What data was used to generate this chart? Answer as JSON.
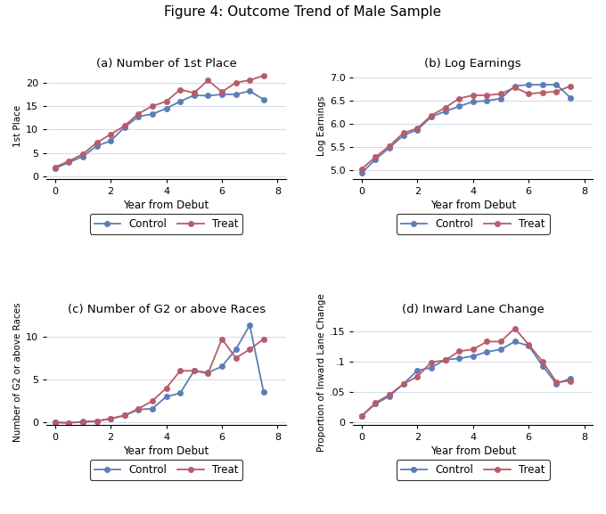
{
  "title": "Figure 4: Outcome Trend of Male Sample",
  "x": [
    0,
    0.5,
    1,
    1.5,
    2,
    2.5,
    3,
    3.5,
    4,
    4.5,
    5,
    5.5,
    6,
    6.5,
    7,
    7.5
  ],
  "panel_a": {
    "title": "(a) Number of 1st Place",
    "ylabel": "1st Place",
    "xlabel": "Year from Debut",
    "control": [
      1.8,
      3.0,
      4.3,
      6.5,
      7.6,
      10.5,
      12.8,
      13.3,
      14.5,
      16.0,
      17.3,
      17.2,
      17.5,
      17.5,
      18.2,
      16.4
    ],
    "treat": [
      2.0,
      3.3,
      4.8,
      7.2,
      9.0,
      10.8,
      13.4,
      15.0,
      16.0,
      18.5,
      17.8,
      20.5,
      18.0,
      20.0,
      20.5,
      21.5
    ],
    "ylim": [
      -0.5,
      22
    ],
    "yticks": [
      0,
      5,
      10,
      15,
      20
    ]
  },
  "panel_b": {
    "title": "(b) Log Earnings",
    "ylabel": "Log Earnings",
    "xlabel": "Year from Debut",
    "control": [
      4.93,
      5.23,
      5.48,
      5.75,
      5.87,
      6.15,
      6.27,
      6.38,
      6.48,
      6.5,
      6.55,
      6.82,
      6.85,
      6.85,
      6.85,
      6.57
    ],
    "treat": [
      5.02,
      5.28,
      5.52,
      5.8,
      5.9,
      6.18,
      6.35,
      6.55,
      6.62,
      6.62,
      6.65,
      6.79,
      6.65,
      6.68,
      6.7,
      6.82
    ],
    "ylim": [
      4.8,
      7.1
    ],
    "yticks": [
      5.0,
      5.5,
      6.0,
      6.5,
      7.0
    ]
  },
  "panel_c": {
    "title": "(c) Number of G2 or above Races",
    "ylabel": "Number of G2 or above Races",
    "xlabel": "Year from Debut",
    "control": [
      0.0,
      -0.05,
      0.05,
      0.15,
      0.45,
      0.8,
      1.5,
      1.6,
      3.0,
      3.4,
      6.0,
      5.8,
      6.5,
      8.5,
      11.3,
      3.5
    ],
    "treat": [
      0.0,
      -0.05,
      0.1,
      0.15,
      0.45,
      0.8,
      1.6,
      2.5,
      4.0,
      6.0,
      6.0,
      5.7,
      9.7,
      7.5,
      8.5,
      9.7
    ],
    "ylim": [
      -0.3,
      12
    ],
    "yticks": [
      0,
      5,
      10
    ]
  },
  "panel_d": {
    "title": "(d) Inward Lane Change",
    "ylabel": "Proportion of Inward Lane Change",
    "xlabel": "Year from Debut",
    "control": [
      0.01,
      0.03,
      0.043,
      0.063,
      0.085,
      0.09,
      0.103,
      0.105,
      0.109,
      0.116,
      0.12,
      0.133,
      0.126,
      0.093,
      0.063,
      0.072
    ],
    "treat": [
      0.01,
      0.032,
      0.045,
      0.063,
      0.075,
      0.099,
      0.102,
      0.117,
      0.12,
      0.133,
      0.133,
      0.155,
      0.128,
      0.1,
      0.066,
      0.068
    ],
    "ylim": [
      -0.005,
      0.17
    ],
    "yticks": [
      0.0,
      0.05,
      0.1,
      0.15
    ]
  },
  "control_color": "#5b7db8",
  "treat_color": "#b85b6a",
  "linewidth": 1.3,
  "markersize": 4.5
}
